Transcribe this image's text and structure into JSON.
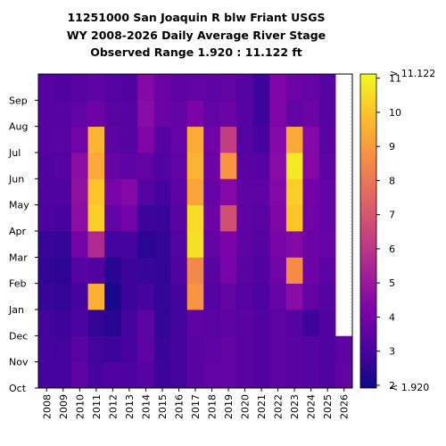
{
  "chart_data": {
    "type": "heatmap",
    "title_lines": [
      "11251000 San Joaquin R blw Friant USGS",
      "WY 2008-2026 Daily Average River Stage",
      "Observed Range 1.920 : 11.122 ft"
    ],
    "x_labels": [
      "2008",
      "2009",
      "2010",
      "2011",
      "2012",
      "2013",
      "2014",
      "2015",
      "2016",
      "2017",
      "2018",
      "2019",
      "2020",
      "2021",
      "2022",
      "2023",
      "2024",
      "2025",
      "2026"
    ],
    "y_labels": [
      "Oct",
      "Nov",
      "Dec",
      "Jan",
      "Feb",
      "Mar",
      "Apr",
      "May",
      "Jun",
      "Jul",
      "Aug",
      "Sep"
    ],
    "colorbar": {
      "min": 1.92,
      "max": 11.122,
      "ticks": [
        "2",
        "3",
        "4",
        "5",
        "6",
        "7",
        "8",
        "9",
        "10",
        "11"
      ],
      "top_label": "> 11.122",
      "bottom_label": "< 1.920",
      "colormap": "plasma"
    },
    "units": "ft",
    "monthly_stage": [
      [
        3.0,
        3.0,
        2.9,
        2.7,
        2.6,
        2.7,
        3.1,
        3.2,
        3.2,
        3.3,
        3.3,
        3.3
      ],
      [
        3.0,
        2.9,
        2.8,
        2.6,
        2.5,
        2.6,
        3.0,
        3.2,
        3.3,
        3.4,
        3.3,
        3.2
      ],
      [
        3.5,
        3.4,
        3.1,
        3.0,
        3.3,
        4.0,
        4.6,
        4.7,
        4.6,
        4.0,
        3.6,
        3.4
      ],
      [
        3.0,
        2.9,
        2.6,
        9.5,
        3.2,
        5.6,
        10.2,
        10.0,
        9.3,
        9.6,
        3.8,
        3.5
      ],
      [
        3.2,
        2.8,
        2.4,
        2.1,
        2.4,
        2.9,
        3.6,
        4.1,
        3.7,
        3.5,
        3.4,
        3.3
      ],
      [
        3.1,
        3.0,
        2.9,
        2.8,
        2.8,
        3.0,
        4.0,
        4.4,
        3.5,
        3.3,
        3.3,
        3.2
      ],
      [
        3.3,
        3.5,
        3.5,
        3.0,
        2.7,
        2.5,
        2.8,
        3.3,
        3.6,
        4.3,
        4.5,
        4.4
      ],
      [
        2.8,
        2.7,
        2.6,
        2.6,
        2.6,
        2.6,
        2.7,
        3.0,
        3.2,
        3.3,
        3.8,
        3.8
      ],
      [
        2.9,
        2.9,
        2.9,
        2.9,
        3.2,
        3.3,
        3.4,
        3.5,
        3.6,
        3.7,
        3.6,
        3.5
      ],
      [
        3.4,
        3.4,
        3.5,
        8.8,
        8.5,
        10.6,
        10.5,
        9.2,
        9.6,
        9.4,
        4.2,
        3.6
      ],
      [
        3.6,
        3.5,
        3.4,
        3.3,
        3.4,
        3.6,
        3.8,
        3.7,
        3.8,
        3.9,
        3.6,
        3.5
      ],
      [
        3.6,
        3.6,
        3.5,
        3.6,
        4.1,
        4.2,
        6.8,
        4.4,
        8.8,
        6.2,
        3.8,
        3.6
      ],
      [
        3.4,
        3.4,
        3.4,
        3.3,
        3.4,
        3.5,
        3.5,
        3.5,
        3.4,
        3.3,
        3.3,
        3.3
      ],
      [
        3.2,
        3.2,
        3.2,
        3.1,
        3.2,
        3.3,
        3.4,
        3.5,
        3.3,
        3.0,
        2.8,
        2.8
      ],
      [
        3.5,
        3.5,
        3.5,
        3.7,
        3.9,
        4.1,
        4.3,
        4.4,
        4.5,
        4.4,
        4.3,
        4.3
      ],
      [
        3.4,
        3.4,
        3.3,
        4.5,
        8.6,
        4.4,
        10.0,
        10.2,
        10.8,
        9.3,
        3.6,
        3.8
      ],
      [
        3.3,
        3.3,
        2.8,
        3.6,
        3.8,
        3.8,
        3.9,
        4.0,
        4.4,
        4.4,
        3.8,
        3.7
      ],
      [
        3.2,
        3.2,
        3.2,
        3.3,
        3.5,
        3.7,
        3.6,
        3.6,
        3.5,
        3.4,
        3.3,
        3.3
      ],
      [
        3.6,
        3.5,
        null,
        null,
        null,
        null,
        null,
        null,
        null,
        null,
        null,
        null
      ]
    ]
  }
}
